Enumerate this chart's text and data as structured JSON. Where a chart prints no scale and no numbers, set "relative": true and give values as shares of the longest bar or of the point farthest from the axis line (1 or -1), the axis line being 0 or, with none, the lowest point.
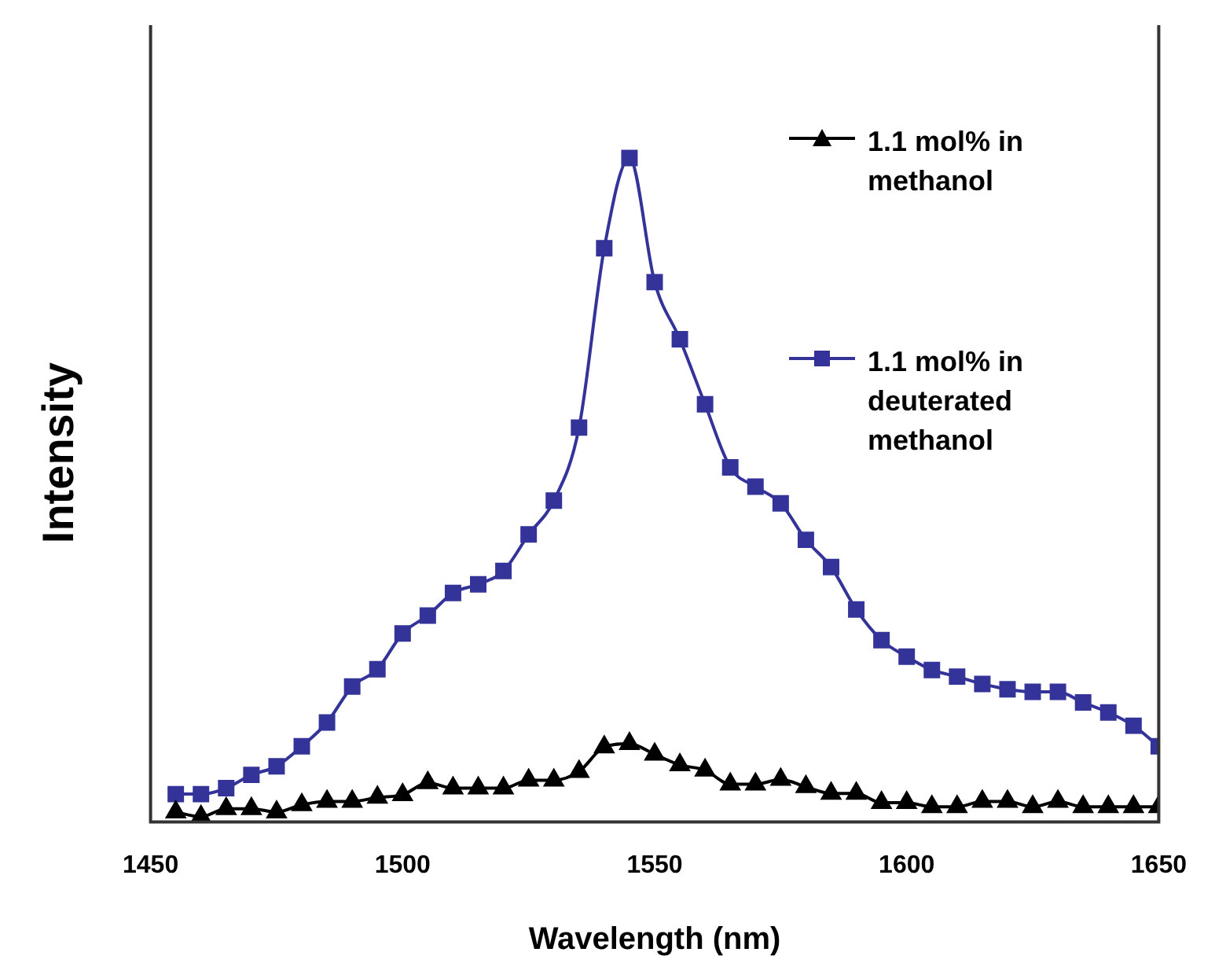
{
  "chart_data": {
    "type": "line",
    "xlabel": "Wavelength (nm)",
    "ylabel": "Intensity",
    "relative": true,
    "xlim": [
      1450,
      1650
    ],
    "xticks": [
      1450,
      1500,
      1550,
      1600,
      1650
    ],
    "grid": false,
    "legend": "top right",
    "line_style": "solid",
    "x": [
      1455,
      1460,
      1465,
      1470,
      1475,
      1480,
      1485,
      1490,
      1495,
      1500,
      1505,
      1510,
      1515,
      1520,
      1525,
      1530,
      1535,
      1540,
      1545,
      1550,
      1555,
      1560,
      1565,
      1570,
      1575,
      1580,
      1585,
      1590,
      1595,
      1600,
      1605,
      1610,
      1615,
      1620,
      1625,
      1630,
      1635,
      1640,
      1645,
      1650
    ],
    "series": [
      {
        "name": "1.1 mol% in methanol",
        "color": "#000000",
        "marker": "triangle",
        "values": [
          0.015,
          0.008,
          0.02,
          0.02,
          0.015,
          0.026,
          0.031,
          0.031,
          0.037,
          0.041,
          0.059,
          0.051,
          0.051,
          0.051,
          0.063,
          0.063,
          0.076,
          0.113,
          0.118,
          0.102,
          0.086,
          0.078,
          0.057,
          0.057,
          0.064,
          0.053,
          0.043,
          0.043,
          0.029,
          0.029,
          0.023,
          0.023,
          0.031,
          0.031,
          0.023,
          0.031,
          0.023,
          0.023,
          0.023,
          0.023
        ]
      },
      {
        "name": "1.1 mol% in deuterated methanol",
        "color": "#333399",
        "marker": "square",
        "values": [
          0.042,
          0.042,
          0.051,
          0.071,
          0.084,
          0.114,
          0.15,
          0.204,
          0.23,
          0.284,
          0.311,
          0.345,
          0.358,
          0.378,
          0.433,
          0.484,
          0.594,
          0.864,
          1.0,
          0.813,
          0.727,
          0.629,
          0.534,
          0.505,
          0.48,
          0.425,
          0.384,
          0.32,
          0.274,
          0.249,
          0.229,
          0.219,
          0.208,
          0.2,
          0.196,
          0.196,
          0.18,
          0.165,
          0.145,
          0.114
        ]
      }
    ]
  }
}
